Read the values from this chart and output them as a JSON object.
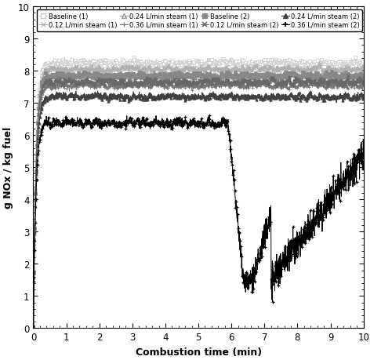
{
  "xlabel": "Combustion time (min)",
  "ylabel": "g NOx / kg fuel",
  "xlim": [
    0,
    10
  ],
  "ylim": [
    0,
    10
  ],
  "xticks": [
    0,
    1,
    2,
    3,
    4,
    5,
    6,
    7,
    8,
    9,
    10
  ],
  "yticks": [
    0,
    1,
    2,
    3,
    4,
    5,
    6,
    7,
    8,
    9,
    10
  ],
  "legend_row1": [
    "Baseline (1)",
    "0.12 L/min steam (1)",
    "0.24 L/min steam (1)",
    "0.36 L/min steam (1)"
  ],
  "legend_row2": [
    "Baseline (2)",
    "0.12 L/min steam (2)",
    "0.24 L/min steam (2)",
    "0.36 L/min steam (2)"
  ],
  "c1": [
    "#c8c8c8",
    "#b0b0b0",
    "#989898",
    "#787878"
  ],
  "c2": [
    "#888888",
    "#686868",
    "#404040",
    "#000000"
  ],
  "steady1": [
    8.25,
    8.05,
    7.85,
    7.55
  ],
  "steady2": [
    7.85,
    7.65,
    7.2,
    6.4
  ],
  "noise_amp": 0.13,
  "seed": 7,
  "n_points": 2000,
  "rise_tau": 0.08
}
